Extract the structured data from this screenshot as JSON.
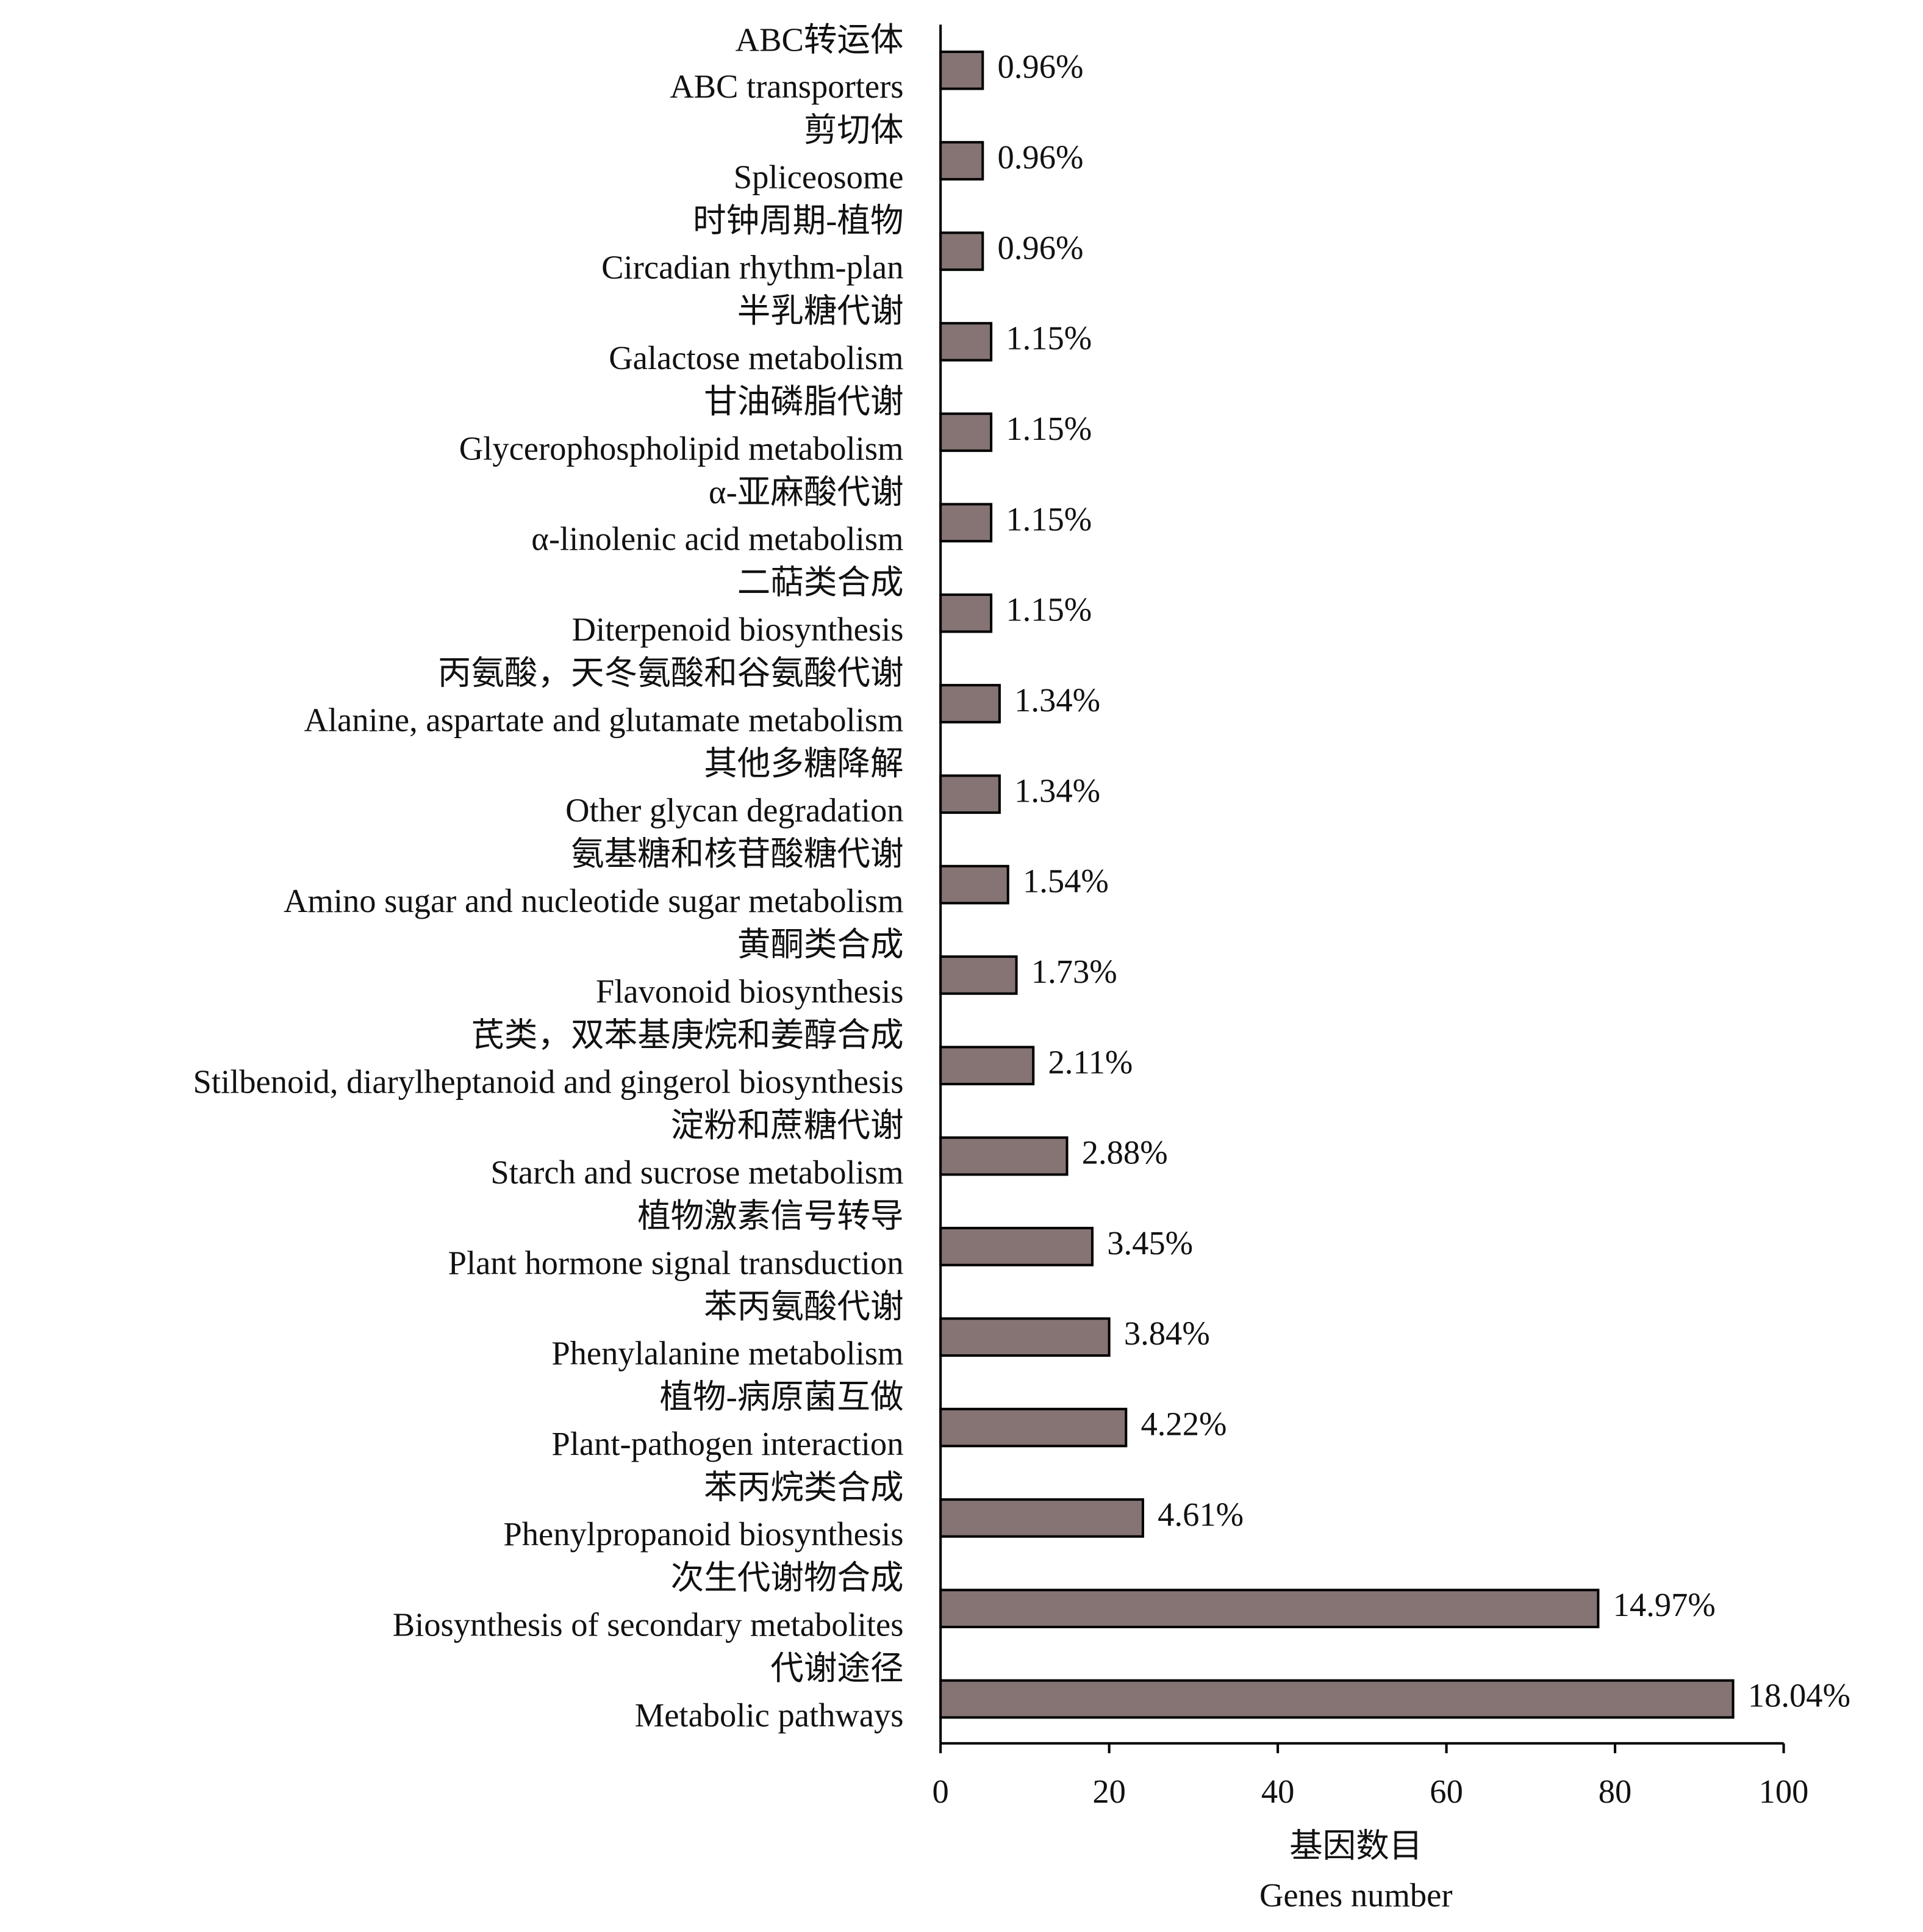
{
  "chart_data": {
    "type": "bar",
    "orientation": "horizontal",
    "categories_zh": [
      "ABC转运体",
      "剪切体",
      "时钟周期-植物",
      "半乳糖代谢",
      "甘油磷脂代谢",
      "α-亚麻酸代谢",
      "二萜类合成",
      "丙氨酸，天冬氨酸和谷氨酸代谢",
      "其他多糖降解",
      "氨基糖和核苷酸糖代谢",
      "黄酮类合成",
      "芪类，双苯基庚烷和姜醇合成",
      "淀粉和蔗糖代谢",
      "植物激素信号转导",
      "苯丙氨酸代谢",
      "植物-病原菌互做",
      "苯丙烷类合成",
      "次生代谢物合成",
      "代谢途径"
    ],
    "categories": [
      "ABC transporters",
      "Spliceosome",
      "Circadian rhythm-plan",
      "Galactose metabolism",
      "Glycerophospholipid metabolism",
      "α-linolenic acid metabolism",
      "Diterpenoid biosynthesis",
      "Alanine, aspartate and glutamate metabolism",
      "Other glycan degradation",
      "Amino sugar and nucleotide sugar metabolism",
      "Flavonoid biosynthesis",
      "Stilbenoid, diarylheptanoid and gingerol biosynthesis",
      "Starch and sucrose metabolism",
      "Plant hormone signal transduction",
      "Phenylalanine metabolism",
      "Plant-pathogen interaction",
      "Phenylpropanoid biosynthesis",
      "Biosynthesis of secondary metabolites",
      "Metabolic pathways"
    ],
    "values": [
      5,
      5,
      5,
      6,
      6,
      6,
      6,
      7,
      7,
      8,
      9,
      11,
      15,
      18,
      20,
      22,
      24,
      78,
      94
    ],
    "annotations": [
      "0.96%",
      "0.96%",
      "0.96%",
      "1.15%",
      "1.15%",
      "1.15%",
      "1.15%",
      "1.34%",
      "1.34%",
      "1.54%",
      "1.73%",
      "2.11%",
      "2.88%",
      "3.45%",
      "3.84%",
      "4.22%",
      "4.61%",
      "14.97%",
      "18.04%"
    ],
    "color": "#857473",
    "xlim": [
      0,
      100
    ],
    "xticks": [
      0,
      20,
      40,
      60,
      80,
      100
    ],
    "xlabel_zh": "基因数目",
    "xlabel": "Genes number",
    "grid": false
  }
}
